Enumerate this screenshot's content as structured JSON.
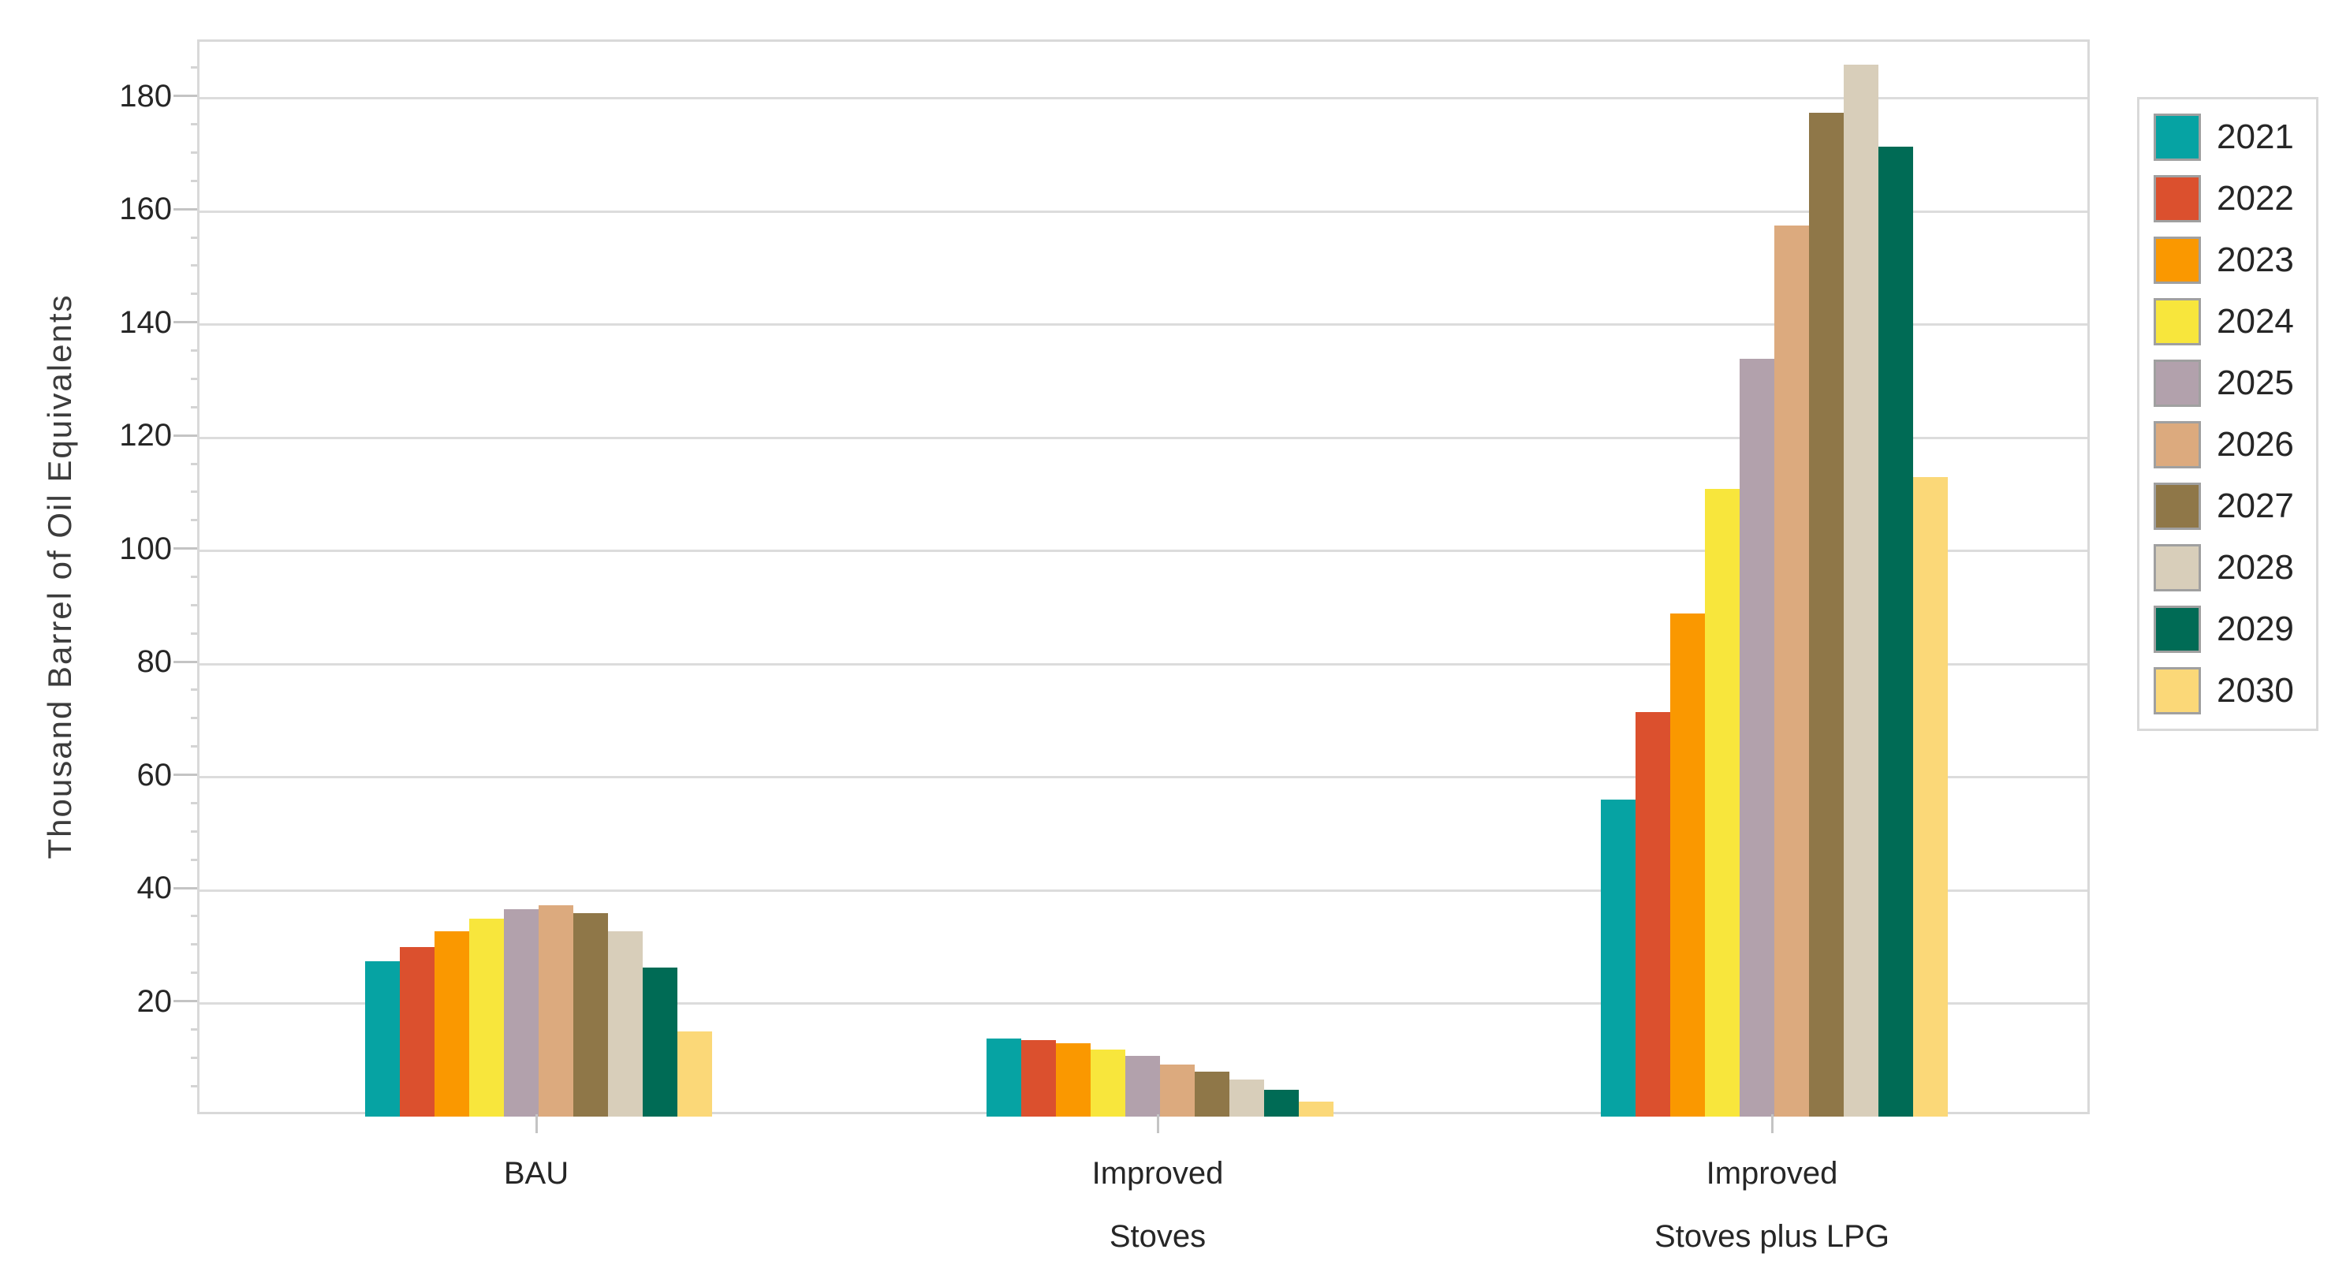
{
  "chart_data": {
    "type": "bar",
    "title": "",
    "ylabel": "Thousand Barrel of Oil Equivalents",
    "xlabel": "",
    "ylim": [
      0,
      190
    ],
    "yticks": [
      20,
      40,
      60,
      80,
      100,
      120,
      140,
      160,
      180
    ],
    "minor_tick_step": 5,
    "grid": "horizontal-major",
    "legend_position": "right",
    "categories": [
      "BAU",
      "Improved Stoves",
      "Improved Stoves plus LPG"
    ],
    "category_label_lines": [
      [
        "BAU"
      ],
      [
        "Improved",
        "Stoves"
      ],
      [
        "Improved",
        "Stoves plus LPG"
      ]
    ],
    "series": [
      {
        "name": "2021",
        "color": "#06a3a3",
        "values": [
          27.5,
          13.8,
          56
        ]
      },
      {
        "name": "2022",
        "color": "#db502e",
        "values": [
          30,
          13.5,
          71.5
        ]
      },
      {
        "name": "2023",
        "color": "#fa9800",
        "values": [
          32.7,
          13,
          89
        ]
      },
      {
        "name": "2024",
        "color": "#f8e63c",
        "values": [
          35,
          11.8,
          111
        ]
      },
      {
        "name": "2025",
        "color": "#b2a1ac",
        "values": [
          36.6,
          10.8,
          134
        ]
      },
      {
        "name": "2026",
        "color": "#dcaa7e",
        "values": [
          37.3,
          9.2,
          157.5
        ]
      },
      {
        "name": "2027",
        "color": "#8f7748",
        "values": [
          36,
          7.9,
          177.5
        ]
      },
      {
        "name": "2028",
        "color": "#d8ceba",
        "values": [
          32.8,
          6.5,
          186
        ]
      },
      {
        "name": "2029",
        "color": "#006b55",
        "values": [
          26.3,
          4.7,
          171.5
        ]
      },
      {
        "name": "2030",
        "color": "#fbd878",
        "values": [
          15,
          2.6,
          113
        ]
      }
    ],
    "legend_entries": [
      "2021",
      "2022",
      "2023",
      "2024",
      "2025",
      "2026",
      "2027",
      "2028",
      "2029",
      "2030"
    ]
  },
  "colors": {
    "background": "#ffffff",
    "gridline": "#dcdcdc",
    "plot_border": "#d9d9d9",
    "tick_major": "#c4c4c4",
    "tick_minor": "#d4d4d4",
    "axis_text": "#262626",
    "axis_title_text": "#3c3c3c",
    "legend_swatch_border": "#a0a0a0"
  }
}
